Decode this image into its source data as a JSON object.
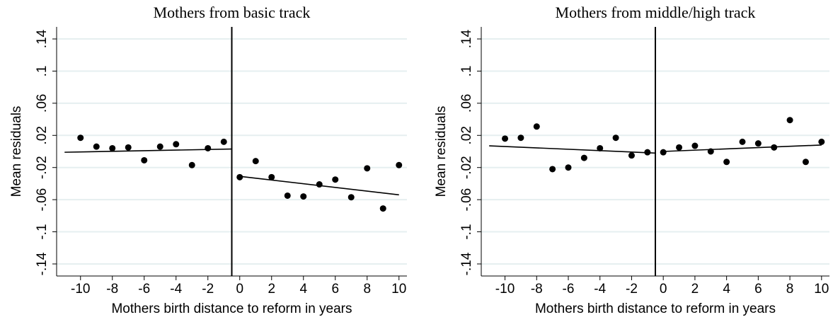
{
  "chart_data": [
    {
      "type": "scatter",
      "title": "Mothers from basic track",
      "x_label": "Mothers birth distance to reform in years",
      "y_label": "Mean residuals",
      "x": [
        -10,
        -9,
        -8,
        -7,
        -6,
        -5,
        -4,
        -3,
        -2,
        -1,
        0,
        1,
        2,
        3,
        4,
        5,
        6,
        7,
        8,
        9,
        10
      ],
      "values": [
        0.017,
        0.006,
        0.004,
        0.005,
        -0.011,
        0.006,
        0.009,
        -0.017,
        0.004,
        0.012,
        -0.032,
        -0.012,
        -0.032,
        -0.055,
        -0.056,
        -0.041,
        -0.035,
        -0.057,
        -0.021,
        -0.071,
        -0.017
      ],
      "color": "#000000",
      "fits": [
        {
          "x": [
            -11,
            -0.5
          ],
          "values": [
            -0.001,
            0.003
          ]
        },
        {
          "x": [
            0,
            10
          ],
          "values": [
            -0.031,
            -0.054
          ]
        }
      ],
      "cutoff": -0.5,
      "xlim": [
        -11.5,
        10.5
      ],
      "ylim": [
        -0.155,
        0.155
      ],
      "xticks": [
        -10,
        -8,
        -6,
        -4,
        -2,
        0,
        2,
        4,
        6,
        8,
        10
      ],
      "yticks": [
        {
          "value": -0.14,
          "label": "-.14"
        },
        {
          "value": -0.1,
          "label": "-.1"
        },
        {
          "value": -0.06,
          "label": "-.06"
        },
        {
          "value": -0.02,
          "label": "-.02"
        },
        {
          "value": 0.02,
          "label": ".02"
        },
        {
          "value": 0.06,
          "label": ".06"
        },
        {
          "value": 0.1,
          "label": ".1"
        },
        {
          "value": 0.14,
          "label": ".14"
        }
      ],
      "grid": true
    },
    {
      "type": "scatter",
      "title": "Mothers from middle/high track",
      "x_label": "Mothers birth distance to reform in years",
      "y_label": "Mean residuals",
      "x": [
        -10,
        -9,
        -8,
        -7,
        -6,
        -5,
        -4,
        -3,
        -2,
        -1,
        0,
        1,
        2,
        3,
        4,
        5,
        6,
        7,
        8,
        9,
        10
      ],
      "values": [
        0.016,
        0.017,
        0.031,
        -0.022,
        -0.02,
        -0.008,
        0.004,
        0.017,
        -0.005,
        -0.001,
        -0.001,
        0.005,
        0.007,
        0,
        -0.013,
        0.012,
        0.01,
        0.005,
        0.039,
        -0.013,
        0.012
      ],
      "color": "#000000",
      "fits": [
        {
          "x": [
            -11,
            -0.5
          ],
          "values": [
            0.007,
            -0.002
          ]
        },
        {
          "x": [
            0,
            10
          ],
          "values": [
            0,
            0.008
          ]
        }
      ],
      "cutoff": -0.5,
      "xlim": [
        -11.5,
        10.5
      ],
      "ylim": [
        -0.155,
        0.155
      ],
      "xticks": [
        -10,
        -8,
        -6,
        -4,
        -2,
        0,
        2,
        4,
        6,
        8,
        10
      ],
      "yticks": [
        {
          "value": -0.14,
          "label": "-.14"
        },
        {
          "value": -0.1,
          "label": "-.1"
        },
        {
          "value": -0.06,
          "label": "-.06"
        },
        {
          "value": -0.02,
          "label": "-.02"
        },
        {
          "value": 0.02,
          "label": ".02"
        },
        {
          "value": 0.06,
          "label": ".06"
        },
        {
          "value": 0.1,
          "label": ".1"
        },
        {
          "value": 0.14,
          "label": ".14"
        }
      ],
      "grid": true
    }
  ]
}
